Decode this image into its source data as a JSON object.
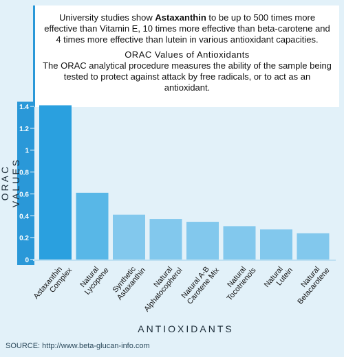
{
  "intro": {
    "prefix": "University studies show ",
    "bold": "Astaxanthin",
    "suffix": " to be up to 500 times more effective than Vitamin E, 10 times more effective than beta-carotene and 4 times more effective than lutein in various antioxidant capacities."
  },
  "info": {
    "title": "ORAC Values of Antioxidants",
    "body": "The ORAC analytical procedure measures the ability of the sample being tested to protect against attack by free radicals, or to act as an antioxidant."
  },
  "source": "SOURCE: http://www.beta-glucan-info.com",
  "colors": {
    "background": "#e2f1f9",
    "bar_highlight": "#2aa0df",
    "bar_mid": "#58b7e7",
    "bar_light": "#82c8ed",
    "axis": "#2a98d8"
  },
  "chart_data": {
    "type": "bar",
    "xlabel": "ANTIOXIDANTS",
    "ylabel": "ORAC VALUES",
    "ylim": [
      0,
      1.4
    ],
    "yticks": [
      0,
      0.2,
      0.4,
      0.6,
      0.8,
      1,
      1.2,
      1.4
    ],
    "ytick_labels": [
      "0",
      "0.2",
      "0.4",
      "0.6",
      "0.8",
      "1",
      "1.2",
      "1.4"
    ],
    "categories": [
      "Astaxanthin Complex",
      "Natural Lycopene",
      "Synthetic Astaxanthin",
      "Natural Alphatocopherol",
      "Natural A-B Carotene Mix",
      "Natural Tocotrienols",
      "Natural Lutein",
      "Natural Betacarotene"
    ],
    "category_lines": [
      [
        "Astaxanthin",
        "Complex"
      ],
      [
        "Natural",
        "Lycopene"
      ],
      [
        "Synthetic",
        "Astaxanthin"
      ],
      [
        "Natural",
        "Alphatocopherol"
      ],
      [
        "Natural A-B",
        "Carotene Mix"
      ],
      [
        "Natural",
        "Tocotrienols"
      ],
      [
        "Natural",
        "Lutein"
      ],
      [
        "Natural",
        "Betacarotene"
      ]
    ],
    "values": [
      1.41,
      0.61,
      0.41,
      0.37,
      0.345,
      0.305,
      0.275,
      0.24
    ],
    "grid": false,
    "legend": "none"
  }
}
